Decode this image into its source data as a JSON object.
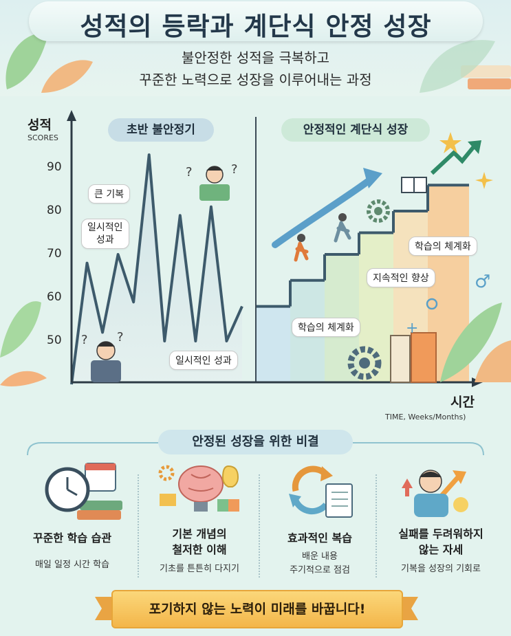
{
  "header": {
    "title": "성적의 등락과 계단식 안정 성장",
    "subtitle_line1": "불안정한 성적을 극복하고",
    "subtitle_line2": "꾸준한 노력으로 성장을 이루어내는 과정"
  },
  "chart": {
    "y_title": "성적",
    "y_subtitle": "SCORES",
    "y_ticks": [
      "90",
      "80",
      "70",
      "60",
      "50"
    ],
    "x_title": "시간",
    "x_subtitle": "TIME, Weeks/Months)",
    "left_section": "초반 불안정기",
    "right_section": "안정적인 계단식 성장",
    "bubble_big_drop": "큰 기복",
    "bubble_temp_line1": "일시적인",
    "bubble_temp_line2": "성과",
    "bubble_temp_result": "일시적인 성과",
    "bubble_system_top": "학습의 체계화",
    "bubble_improve": "지속적인 향상",
    "bubble_system_bottom": "학습의 체계화"
  },
  "chart_data": {
    "type": "line",
    "ylim": [
      40,
      100
    ],
    "unstable_series": [
      40,
      68,
      52,
      70,
      59,
      93,
      50,
      79,
      50,
      81,
      50,
      58
    ],
    "steps": [
      58,
      64,
      70,
      75,
      80,
      86
    ]
  },
  "tips": {
    "heading": "안정된 성장을 위한 비결",
    "items": [
      {
        "title1": "꾸준한 학습 습관",
        "title2": "",
        "desc1": "매일 일정 시간 학습",
        "desc2": ""
      },
      {
        "title1": "기본 개념의",
        "title2": "철저한 이해",
        "desc1": "기초를 튼튼히 다지기",
        "desc2": ""
      },
      {
        "title1": "효과적인 복습",
        "title2": "",
        "desc1": "배운 내용",
        "desc2": "주기적으로 점검"
      },
      {
        "title1": "실패를 두려워하지",
        "title2": "않는 자세",
        "desc1": "기복을 성장의 기회로",
        "desc2": ""
      }
    ]
  },
  "banner": {
    "text": "포기하지 않는 노력이 미래를 바꿉니다!"
  },
  "colors": {
    "line": "#3d5a6b",
    "arrow": "#5b9fc9",
    "banner": "#f6c660",
    "accent_green": "#2f8a67"
  }
}
